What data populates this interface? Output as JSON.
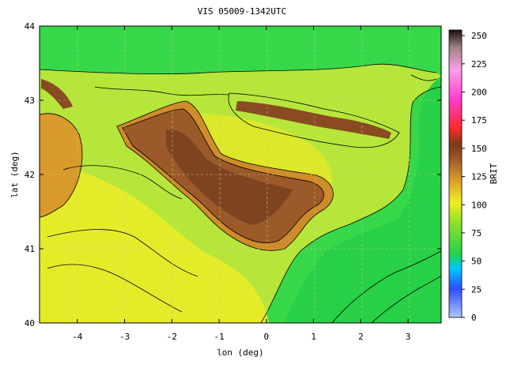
{
  "title": "VIS 05009-1342UTC",
  "chart_data": {
    "type": "heatmap",
    "xlabel": "lon (deg)",
    "ylabel": "lat (deg)",
    "xlim": [
      -4.8,
      3.7
    ],
    "ylim": [
      40,
      44
    ],
    "xticks": [
      -4,
      -3,
      -2,
      -1,
      0,
      1,
      2,
      3
    ],
    "yticks": [
      40,
      41,
      42,
      43,
      44
    ],
    "grid": true,
    "colorbar": {
      "label": "BRIT",
      "min": 0,
      "max": 255,
      "ticks": [
        0,
        25,
        50,
        75,
        100,
        125,
        150,
        175,
        200,
        225,
        250
      ],
      "colors": [
        "#a8c8ff",
        "#2f4cff",
        "#00c8ff",
        "#22d24a",
        "#8ee22a",
        "#f2ee20",
        "#d89a2a",
        "#a05a28",
        "#7a3a18",
        "#ff2a2a",
        "#ff3ccf",
        "#ffa0e8",
        "#1a0d0d"
      ]
    }
  }
}
